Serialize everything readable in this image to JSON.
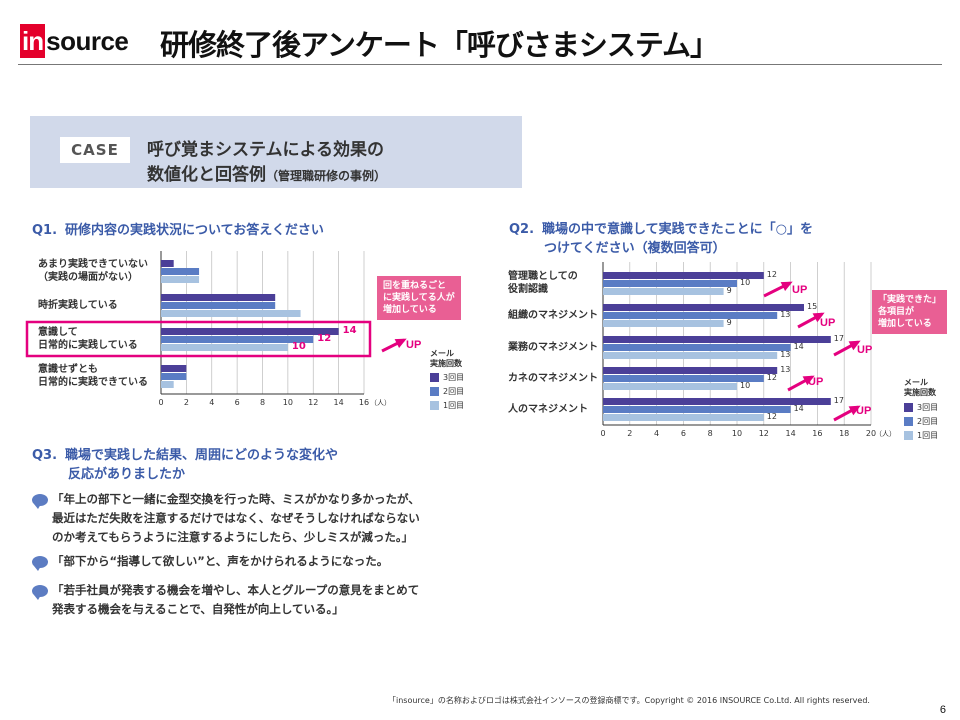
{
  "header": {
    "logo_in": "in",
    "logo_rest": "source",
    "title": "研修終了後アンケート「呼びさまシステム」"
  },
  "case": {
    "label": "CASE",
    "title_line1": "呼び覚まシステムによる効果の",
    "title_line2": "数値化と回答例",
    "title_sub": "（管理職研修の事例）"
  },
  "q1": {
    "num": "Q1.",
    "text": "研修内容の実践状況についてお答えください",
    "note": [
      "回を重ねるごと",
      "に実践してる人が",
      "増加している"
    ],
    "up": "UP"
  },
  "q2": {
    "num": "Q2.",
    "text_line1": "職場の中で意識して実践できたことに「○」を",
    "text_line2": "つけてください（複数回答可）",
    "note": [
      "「実践できた」",
      "各項目が",
      "増加している"
    ],
    "up": "UP"
  },
  "q3": {
    "num": "Q3.",
    "text_line1": "職場で実践した結果、周囲にどのような変化や",
    "text_line2": "反応がありましたか",
    "comments": [
      [
        "「年上の部下と一緒に金型交換を行った時、ミスがかなり多かったが、",
        "最近はただ失敗を注意するだけではなく、なぜそうしなければならない",
        "のか考えてもらうように注意するようにしたら、少しミスが減った。」"
      ],
      [
        "「部下から“指導して欲しい”と、声をかけられるようになった。"
      ],
      [
        "「若手社員が発表する機会を増やし、本人とグループの意見をまとめて",
        "発表する機会を与えることで、自発性が向上している。」"
      ]
    ]
  },
  "legend": {
    "title_line1": "メール",
    "title_line2": "実施回数",
    "items": [
      "3回目",
      "2回目",
      "1回目"
    ]
  },
  "colors": {
    "series_3": "#4b3f98",
    "series_2": "#5a7cc4",
    "series_1": "#a7c2e0",
    "accent": "#e4007f",
    "brand": "#e4002b"
  },
  "chart_data": [
    {
      "type": "bar",
      "orientation": "horizontal",
      "categories": [
        [
          "あまり実践できていない",
          "（実践の場面がない）"
        ],
        [
          "時折実践している"
        ],
        [
          "意識して",
          "日常的に実践している"
        ],
        [
          "意識せずとも",
          "日常的に実践できている"
        ]
      ],
      "series": [
        {
          "name": "3回目",
          "values": [
            1,
            9,
            14,
            2
          ]
        },
        {
          "name": "2回目",
          "values": [
            3,
            9,
            12,
            2
          ]
        },
        {
          "name": "1回目",
          "values": [
            3,
            11,
            10,
            1
          ]
        }
      ],
      "data_labels_category_index": 2,
      "xticks": [
        0,
        2,
        4,
        6,
        8,
        10,
        12,
        14,
        16
      ],
      "xunit": "（人）",
      "xlim": [
        0,
        16
      ]
    },
    {
      "type": "bar",
      "orientation": "horizontal",
      "categories": [
        [
          "管理職としての",
          "役割認識"
        ],
        [
          "組織のマネジメント"
        ],
        [
          "業務のマネジメント"
        ],
        [
          "カネのマネジメント"
        ],
        [
          "人のマネジメント"
        ]
      ],
      "series": [
        {
          "name": "3回目",
          "values": [
            12,
            15,
            17,
            13,
            17
          ]
        },
        {
          "name": "2回目",
          "values": [
            10,
            13,
            14,
            12,
            14
          ]
        },
        {
          "name": "1回目",
          "values": [
            9,
            9,
            13,
            10,
            12
          ]
        }
      ],
      "xticks": [
        0,
        2,
        4,
        6,
        8,
        10,
        12,
        14,
        16,
        18,
        20
      ],
      "xunit": "（人）",
      "xlim": [
        0,
        20
      ]
    }
  ],
  "footer": "「insource」の名称およびロゴは株式会社インソースの登録商標です。Copyright © 2016 INSOURCE Co.Ltd. All rights reserved.",
  "page_number": "6"
}
